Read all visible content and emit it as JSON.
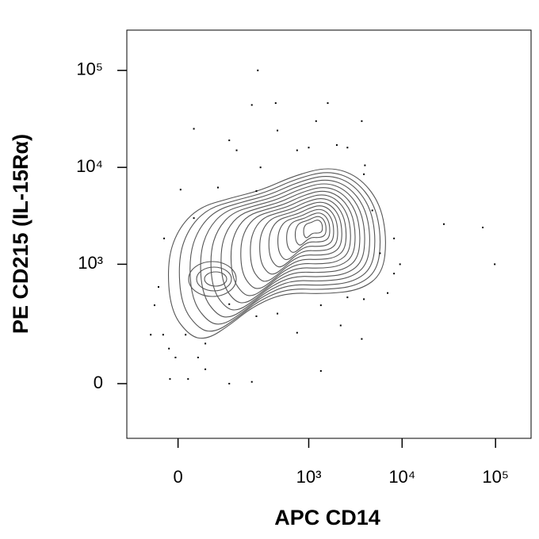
{
  "chart_data": {
    "type": "contour-scatter",
    "x_label": "APC CD14",
    "y_label": "PE CD215 (IL-15Rα)",
    "scale": "biexponential",
    "color": "#000000",
    "xlim": [
      -130,
      240000
    ],
    "ylim": [
      -200,
      260000
    ],
    "xticks": [
      0,
      {
        "value": 1000,
        "label": "10³"
      },
      {
        "value": 10000,
        "label": "10⁴"
      },
      {
        "value": 100000,
        "label": "10⁵"
      }
    ],
    "yticks": [
      0,
      {
        "value": 1000,
        "label": "10³"
      },
      {
        "value": 10000,
        "label": "10⁴"
      },
      {
        "value": 100000,
        "label": "10⁵"
      }
    ],
    "x": [
      280,
      28000,
      73000,
      98000,
      1350,
      32,
      1600,
      3700,
      440,
      240,
      -16,
      -58,
      20,
      130,
      240,
      58,
      41,
      -5,
      -49,
      -40,
      -28,
      5,
      92,
      160,
      300,
      750,
      1000,
      2000,
      2600,
      4000,
      3900,
      8200,
      9500,
      8200,
      7000,
      3900,
      3700,
      2200,
      750,
      460,
      270,
      130,
      2600,
      1350,
      -30,
      -18,
      58,
      15,
      460,
      130,
      1200,
      270,
      32,
      4800,
      5800
    ],
    "y": [
      100000,
      2600,
      2400,
      1000,
      36,
      25000,
      46000,
      30000,
      46000,
      44000,
      13,
      170,
      13,
      0,
      5,
      41,
      78,
      78,
      370,
      580,
      1850,
      5900,
      6200,
      15000,
      10000,
      15000,
      16000,
      17000,
      16000,
      10500,
      8500,
      1850,
      1000,
      800,
      500,
      430,
      150,
      220,
      180,
      300,
      280,
      380,
      450,
      370,
      170,
      110,
      130,
      170,
      24000,
      19000,
      30000,
      5700,
      3000,
      3600,
      1300
    ]
  }
}
